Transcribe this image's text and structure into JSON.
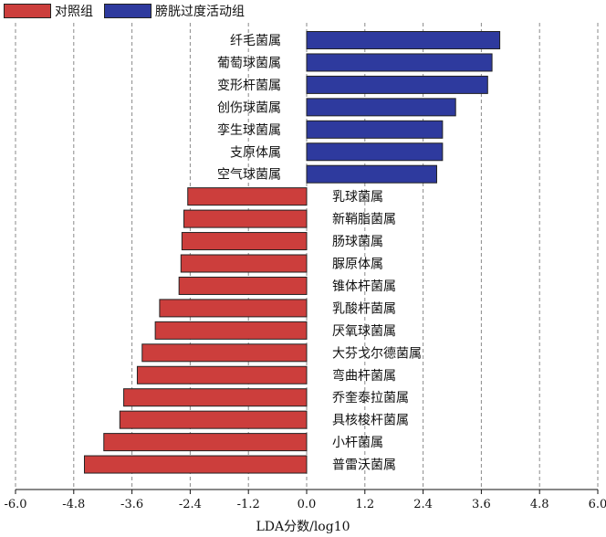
{
  "legend": {
    "control_label": "对照组",
    "control_color": "#cc3e3c",
    "active_label": "膀胱过度活动组",
    "active_color": "#2e3a9e"
  },
  "chart_data": {
    "type": "bar",
    "orientation": "horizontal",
    "xlabel": "LDA分数/log10",
    "xlim": [
      -6.0,
      6.0
    ],
    "xticks": [
      "-6.0",
      "-4.8",
      "-3.6",
      "-2.4",
      "-1.2",
      "0.0",
      "1.2",
      "2.4",
      "3.6",
      "4.8",
      "6.0"
    ],
    "grid": "vertical dashed",
    "legend_position": "top-left",
    "categories": [
      "纤毛菌属",
      "葡萄球菌属",
      "变形杆菌属",
      "创伤球菌属",
      "孪生球菌属",
      "支原体属",
      "空气球菌属",
      "乳球菌属",
      "新鞘脂菌属",
      "肠球菌属",
      "脲原体属",
      "锥体杆菌属",
      "乳酸杆菌属",
      "厌氧球菌属",
      "大芬戈尔德菌属",
      "弯曲杆菌属",
      "乔奎泰拉菌属",
      "具核梭杆菌属",
      "小杆菌属",
      "普雷沃菌属"
    ],
    "series": [
      {
        "name": "膀胱过度活动组",
        "color": "#2e3a9e",
        "values": [
          3.98,
          3.82,
          3.73,
          3.07,
          2.8,
          2.8,
          2.68,
          null,
          null,
          null,
          null,
          null,
          null,
          null,
          null,
          null,
          null,
          null,
          null,
          null
        ]
      },
      {
        "name": "对照组",
        "color": "#cc3e3c",
        "values": [
          null,
          null,
          null,
          null,
          null,
          null,
          null,
          -2.45,
          -2.53,
          -2.57,
          -2.59,
          -2.63,
          -3.03,
          -3.12,
          -3.39,
          -3.49,
          -3.77,
          -3.85,
          -4.18,
          -4.58
        ]
      }
    ]
  }
}
